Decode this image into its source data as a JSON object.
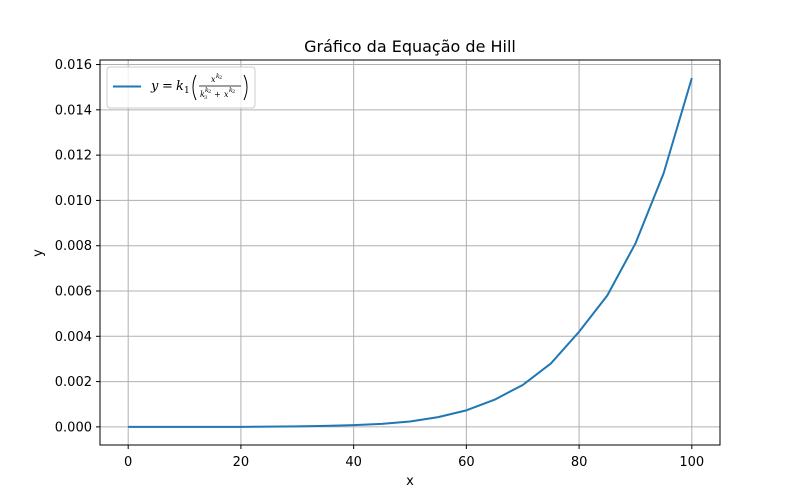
{
  "chart_data": {
    "type": "line",
    "title": "Gráfico da Equação de Hill",
    "xlabel": "x",
    "ylabel": "y",
    "xlim": [
      -5,
      105
    ],
    "ylim": [
      -0.0008,
      0.0162
    ],
    "xticks": [
      0,
      20,
      40,
      60,
      80,
      100
    ],
    "xtick_labels": [
      "0",
      "20",
      "40",
      "60",
      "80",
      "100"
    ],
    "yticks": [
      0.0,
      0.002,
      0.004,
      0.006,
      0.008,
      0.01,
      0.012,
      0.014,
      0.016
    ],
    "ytick_labels": [
      "0.000",
      "0.002",
      "0.004",
      "0.006",
      "0.008",
      "0.010",
      "0.012",
      "0.014",
      "0.016"
    ],
    "grid": true,
    "legend_position": "upper-left",
    "series": [
      {
        "label": "y = k1(x^k2 / (k3^k2 + x^k2))",
        "color": "#1f77b4",
        "x": [
          0,
          10,
          20,
          30,
          35,
          40,
          45,
          50,
          55,
          60,
          65,
          70,
          75,
          80,
          85,
          90,
          95,
          100
        ],
        "y": [
          0.0,
          0.0,
          2e-06,
          2e-05,
          4.2e-05,
          7.5e-05,
          0.000135,
          0.00024,
          0.00043,
          0.00073,
          0.0012,
          0.00185,
          0.0028,
          0.0042,
          0.0058,
          0.0081,
          0.0112,
          0.0154
        ]
      }
    ]
  },
  "legend": {
    "y": "y",
    "equals": "=",
    "k1": "k",
    "k1_sub": "1",
    "num_base": "x",
    "num_sup": "k",
    "num_sup_sub": "2",
    "den_k": "k",
    "den_k_sub": "3",
    "den_k_sup": "k",
    "den_k_sup_sub": "2",
    "plus": "+",
    "den_x": "x",
    "den_x_sup": "k",
    "den_x_sup_sub": "2"
  }
}
